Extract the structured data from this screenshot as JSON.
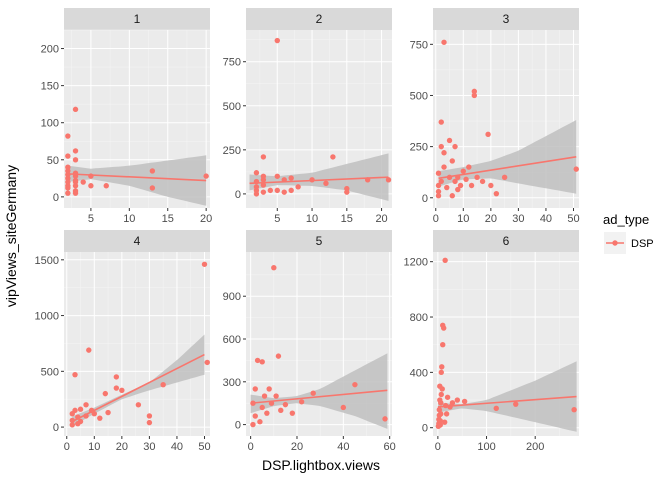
{
  "chart_data": {
    "type": "scatter",
    "facet_by": "panel",
    "xlabel": "DSP.lightbox.views",
    "ylabel": "vipViews_siteGermany",
    "legend": {
      "title": "ad_type",
      "placement": "right",
      "entries": [
        {
          "label": "DSP",
          "color": "#F8766D"
        }
      ]
    },
    "colors": {
      "point": "#F8766D",
      "ribbon": "#bfbfbf",
      "panel_bg": "#ebebeb",
      "strip_bg": "#d9d9d9",
      "grid": "#ffffff"
    },
    "panels": [
      {
        "label": "1",
        "xlim": [
          1.5,
          20.5
        ],
        "ylim": [
          -15,
          225
        ],
        "xticks": [
          5,
          10,
          15,
          20
        ],
        "yticks": [
          0,
          50,
          100,
          150,
          200
        ],
        "trend": {
          "x": [
            2,
            20
          ],
          "y": [
            31,
            22
          ]
        },
        "band": {
          "x": [
            2,
            5,
            10,
            15,
            20
          ],
          "lo": [
            20,
            24,
            15,
            0,
            -12
          ],
          "hi": [
            42,
            38,
            42,
            49,
            56
          ]
        },
        "points": [
          [
            2,
            5
          ],
          [
            2,
            12
          ],
          [
            2,
            15
          ],
          [
            2,
            20
          ],
          [
            2,
            25
          ],
          [
            2,
            30
          ],
          [
            2,
            35
          ],
          [
            2,
            40
          ],
          [
            2,
            55
          ],
          [
            2,
            82
          ],
          [
            3,
            8
          ],
          [
            3,
            15
          ],
          [
            3,
            20
          ],
          [
            3,
            22
          ],
          [
            3,
            28
          ],
          [
            3,
            32
          ],
          [
            3,
            50
          ],
          [
            3,
            62
          ],
          [
            3,
            118
          ],
          [
            3,
            5
          ],
          [
            4,
            20
          ],
          [
            5,
            28
          ],
          [
            5,
            15
          ],
          [
            7,
            15
          ],
          [
            13,
            35
          ],
          [
            13,
            12
          ],
          [
            20,
            28
          ]
        ]
      },
      {
        "label": "2",
        "xlim": [
          0.5,
          21.5
        ],
        "ylim": [
          -80,
          930
        ],
        "xticks": [
          5,
          10,
          15,
          20
        ],
        "yticks": [
          0,
          250,
          500,
          750
        ],
        "trend": {
          "x": [
            1,
            21
          ],
          "y": [
            60,
            95
          ]
        },
        "band": {
          "x": [
            1,
            5,
            10,
            15,
            21
          ],
          "lo": [
            20,
            50,
            45,
            20,
            -40
          ],
          "hi": [
            110,
            100,
            120,
            170,
            230
          ]
        },
        "points": [
          [
            2,
            0
          ],
          [
            2,
            20
          ],
          [
            2,
            40
          ],
          [
            2,
            70
          ],
          [
            2,
            120
          ],
          [
            3,
            10
          ],
          [
            3,
            50
          ],
          [
            3,
            80
          ],
          [
            3,
            100
          ],
          [
            3,
            210
          ],
          [
            4,
            20
          ],
          [
            5,
            870
          ],
          [
            5,
            20
          ],
          [
            5,
            100
          ],
          [
            6,
            10
          ],
          [
            6,
            80
          ],
          [
            7,
            20
          ],
          [
            7,
            90
          ],
          [
            8,
            40
          ],
          [
            10,
            80
          ],
          [
            12,
            60
          ],
          [
            13,
            210
          ],
          [
            15,
            10
          ],
          [
            15,
            30
          ],
          [
            18,
            80
          ],
          [
            21,
            80
          ]
        ]
      },
      {
        "label": "3",
        "xlim": [
          -1,
          52
        ],
        "ylim": [
          -50,
          820
        ],
        "xticks": [
          0,
          10,
          20,
          30,
          40,
          50
        ],
        "yticks": [
          0,
          250,
          500,
          750
        ],
        "trend": {
          "x": [
            1,
            51
          ],
          "y": [
            95,
            200
          ]
        },
        "band": {
          "x": [
            1,
            10,
            20,
            30,
            51
          ],
          "lo": [
            55,
            90,
            95,
            70,
            20
          ],
          "hi": [
            130,
            150,
            180,
            230,
            380
          ]
        },
        "points": [
          [
            1,
            10
          ],
          [
            1,
            30
          ],
          [
            1,
            60
          ],
          [
            1,
            120
          ],
          [
            2,
            250
          ],
          [
            2,
            370
          ],
          [
            2,
            80
          ],
          [
            3,
            760
          ],
          [
            3,
            150
          ],
          [
            3,
            220
          ],
          [
            4,
            50
          ],
          [
            5,
            100
          ],
          [
            5,
            280
          ],
          [
            6,
            10
          ],
          [
            6,
            180
          ],
          [
            7,
            80
          ],
          [
            7,
            250
          ],
          [
            8,
            100
          ],
          [
            8,
            40
          ],
          [
            9,
            60
          ],
          [
            10,
            130
          ],
          [
            11,
            90
          ],
          [
            12,
            150
          ],
          [
            13,
            60
          ],
          [
            14,
            500
          ],
          [
            14,
            520
          ],
          [
            15,
            100
          ],
          [
            17,
            80
          ],
          [
            19,
            310
          ],
          [
            20,
            60
          ],
          [
            22,
            20
          ],
          [
            25,
            100
          ],
          [
            51,
            140
          ]
        ]
      },
      {
        "label": "4",
        "xlim": [
          -1,
          52
        ],
        "ylim": [
          -80,
          1570
        ],
        "xticks": [
          0,
          10,
          20,
          30,
          40,
          50
        ],
        "yticks": [
          0,
          500,
          1000,
          1500
        ],
        "trend": {
          "x": [
            2,
            50
          ],
          "y": [
            50,
            650
          ]
        },
        "band": {
          "x": [
            2,
            10,
            20,
            30,
            40,
            50
          ],
          "lo": [
            5,
            120,
            250,
            330,
            400,
            470
          ],
          "hi": [
            95,
            175,
            290,
            400,
            600,
            830
          ]
        },
        "points": [
          [
            2,
            20
          ],
          [
            2,
            60
          ],
          [
            2,
            120
          ],
          [
            3,
            150
          ],
          [
            3,
            470
          ],
          [
            4,
            30
          ],
          [
            4,
            90
          ],
          [
            5,
            160
          ],
          [
            5,
            50
          ],
          [
            7,
            200
          ],
          [
            7,
            100
          ],
          [
            8,
            690
          ],
          [
            9,
            150
          ],
          [
            10,
            120
          ],
          [
            12,
            80
          ],
          [
            14,
            300
          ],
          [
            15,
            130
          ],
          [
            18,
            350
          ],
          [
            18,
            450
          ],
          [
            20,
            330
          ],
          [
            26,
            200
          ],
          [
            30,
            100
          ],
          [
            30,
            40
          ],
          [
            35,
            380
          ],
          [
            50,
            1460
          ],
          [
            51,
            580
          ]
        ]
      },
      {
        "label": "5",
        "xlim": [
          -2,
          61
        ],
        "ylim": [
          -80,
          1210
        ],
        "xticks": [
          0,
          20,
          40,
          60
        ],
        "yticks": [
          0,
          300,
          600,
          900
        ],
        "trend": {
          "x": [
            0,
            59
          ],
          "y": [
            150,
            240
          ]
        },
        "band": {
          "x": [
            0,
            10,
            20,
            30,
            45,
            59
          ],
          "lo": [
            80,
            130,
            150,
            130,
            60,
            -30
          ],
          "hi": [
            210,
            185,
            200,
            250,
            380,
            500
          ]
        },
        "points": [
          [
            1,
            0
          ],
          [
            1,
            150
          ],
          [
            2,
            60
          ],
          [
            2,
            250
          ],
          [
            3,
            450
          ],
          [
            4,
            20
          ],
          [
            5,
            120
          ],
          [
            5,
            440
          ],
          [
            6,
            200
          ],
          [
            7,
            80
          ],
          [
            8,
            250
          ],
          [
            9,
            150
          ],
          [
            10,
            1100
          ],
          [
            11,
            200
          ],
          [
            12,
            480
          ],
          [
            13,
            100
          ],
          [
            15,
            140
          ],
          [
            18,
            80
          ],
          [
            22,
            160
          ],
          [
            27,
            220
          ],
          [
            40,
            120
          ],
          [
            45,
            280
          ],
          [
            58,
            40
          ]
        ]
      },
      {
        "label": "6",
        "xlim": [
          -10,
          290
        ],
        "ylim": [
          -60,
          1270
        ],
        "xticks": [
          0,
          100,
          200
        ],
        "yticks": [
          0,
          400,
          800,
          1200
        ],
        "trend": {
          "x": [
            0,
            285
          ],
          "y": [
            150,
            225
          ]
        },
        "band": {
          "x": [
            0,
            50,
            100,
            150,
            200,
            285
          ],
          "lo": [
            110,
            140,
            120,
            80,
            40,
            -30
          ],
          "hi": [
            180,
            170,
            200,
            270,
            340,
            480
          ]
        },
        "points": [
          [
            1,
            10
          ],
          [
            2,
            30
          ],
          [
            2,
            60
          ],
          [
            3,
            90
          ],
          [
            3,
            130
          ],
          [
            4,
            200
          ],
          [
            4,
            300
          ],
          [
            5,
            20
          ],
          [
            5,
            50
          ],
          [
            6,
            100
          ],
          [
            6,
            180
          ],
          [
            7,
            240
          ],
          [
            7,
            400
          ],
          [
            8,
            440
          ],
          [
            9,
            280
          ],
          [
            10,
            740
          ],
          [
            10,
            600
          ],
          [
            12,
            720
          ],
          [
            14,
            40
          ],
          [
            15,
            1210
          ],
          [
            16,
            160
          ],
          [
            18,
            100
          ],
          [
            20,
            220
          ],
          [
            25,
            150
          ],
          [
            30,
            180
          ],
          [
            40,
            200
          ],
          [
            55,
            190
          ],
          [
            120,
            140
          ],
          [
            160,
            170
          ],
          [
            280,
            130
          ]
        ]
      }
    ]
  }
}
